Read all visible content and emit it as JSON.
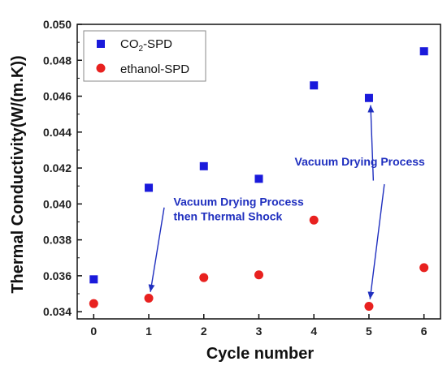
{
  "chart_data": {
    "type": "scatter",
    "xlabel": "Cycle number",
    "ylabel": "Thermal Conductivity(W/(m.K))",
    "xlim": [
      -0.3,
      6.3
    ],
    "ylim": [
      0.0336,
      0.05
    ],
    "xticks": [
      0,
      1,
      2,
      3,
      4,
      5,
      6
    ],
    "yticks": [
      0.034,
      0.036,
      0.038,
      0.04,
      0.042,
      0.044,
      0.046,
      0.048,
      0.05
    ],
    "ytick_labels": [
      "0.034",
      "0.036",
      "0.038",
      "0.040",
      "0.042",
      "0.044",
      "0.046",
      "0.048",
      "0.050"
    ],
    "legend_position": "top-left",
    "series": [
      {
        "name_prefix": "CO",
        "name_sub": "2",
        "name_suffix": "-SPD",
        "marker": "square",
        "color": "#1a1adb",
        "x": [
          0,
          1,
          2,
          3,
          4,
          5,
          6
        ],
        "y": [
          0.0358,
          0.0409,
          0.0421,
          0.0414,
          0.0466,
          0.0459,
          0.0485
        ]
      },
      {
        "name": "ethanol-SPD",
        "marker": "circle",
        "color": "#e8211f",
        "x": [
          0,
          1,
          2,
          3,
          4,
          5,
          6
        ],
        "y": [
          0.03445,
          0.03475,
          0.0359,
          0.03605,
          0.0391,
          0.0343,
          0.03645
        ]
      }
    ],
    "annotations": [
      {
        "lines": [
          "Vacuum Drying Process",
          "then Thermal Shock"
        ],
        "color": "#1f2fbf",
        "text_anchor": {
          "x": 1.45,
          "y": 0.0399
        },
        "arrow_from": {
          "x": 1.28,
          "y": 0.0398
        },
        "arrow_to": {
          "x": 1.03,
          "y": 0.0351
        }
      },
      {
        "lines": [
          "Vacuum Drying Process"
        ],
        "color": "#1f2fbf",
        "text_anchor": {
          "x": 3.65,
          "y": 0.04215
        },
        "arrow_from": {
          "x": 5.28,
          "y": 0.0411
        },
        "arrow_to": {
          "x": 5.02,
          "y": 0.0347
        }
      },
      {
        "lines": [],
        "color": "#1f2fbf",
        "arrow_from": {
          "x": 5.08,
          "y": 0.0413
        },
        "arrow_to": {
          "x": 5.03,
          "y": 0.0455
        }
      }
    ]
  }
}
